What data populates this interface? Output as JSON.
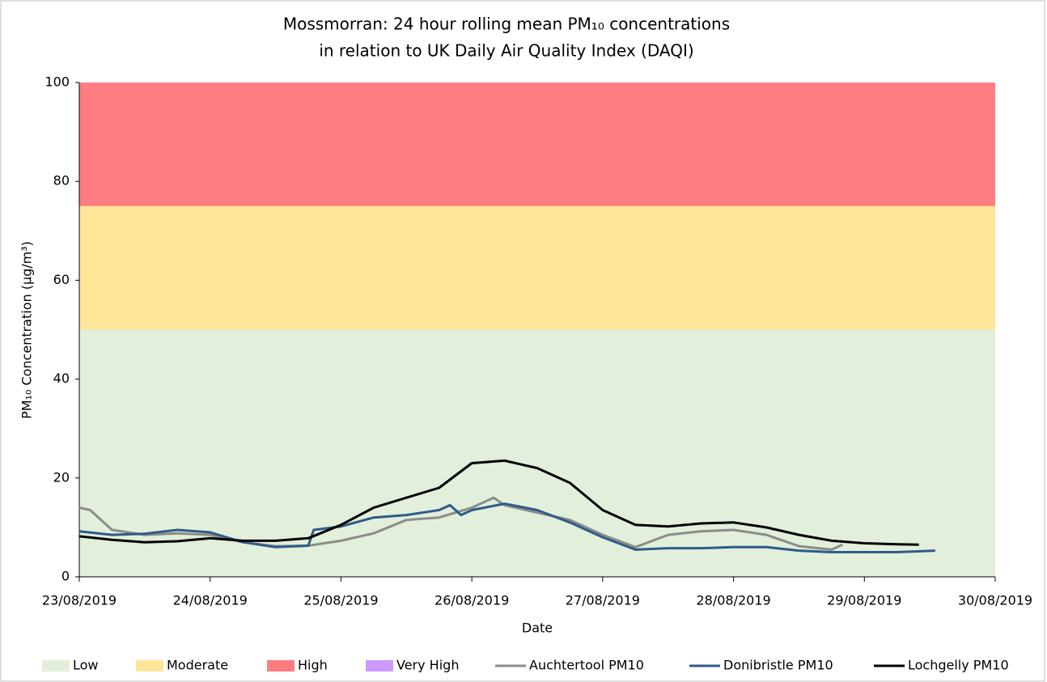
{
  "chart_data": {
    "type": "line",
    "title": [
      "Mossmorran: 24 hour rolling mean PM₁₀ concentrations",
      "in relation to UK Daily Air Quality Index (DAQI)"
    ],
    "x_label": "Date",
    "y_label": "PM₁₀ Concentration (µg/m³)",
    "xlim": [
      "2019-08-23T00:00",
      "2019-08-30T00:00"
    ],
    "xticks": [
      {
        "value": "2019-08-23T00:00",
        "label": "23/08/2019"
      },
      {
        "value": "2019-08-24T00:00",
        "label": "24/08/2019"
      },
      {
        "value": "2019-08-25T00:00",
        "label": "25/08/2019"
      },
      {
        "value": "2019-08-26T00:00",
        "label": "26/08/2019"
      },
      {
        "value": "2019-08-27T00:00",
        "label": "27/08/2019"
      },
      {
        "value": "2019-08-28T00:00",
        "label": "28/08/2019"
      },
      {
        "value": "2019-08-29T00:00",
        "label": "29/08/2019"
      },
      {
        "value": "2019-08-30T00:00",
        "label": "30/08/2019"
      }
    ],
    "ylim": [
      0,
      100
    ],
    "yticks": [
      0,
      20,
      40,
      60,
      80,
      100
    ],
    "bands": [
      {
        "name": "Low",
        "from": 0,
        "to": 50,
        "color": "#e2efda"
      },
      {
        "name": "Moderate",
        "from": 50,
        "to": 75,
        "color": "#ffe699"
      },
      {
        "name": "High",
        "from": 75,
        "to": 100,
        "color": "#ff7c80"
      },
      {
        "name": "Very High",
        "from": 100,
        "color": "#cc99ff"
      }
    ],
    "series": [
      {
        "name": "Auchtertool PM10",
        "color": "#8c8c8c",
        "x": [
          "2019-08-23T00:00",
          "2019-08-23T02:00",
          "2019-08-23T06:00",
          "2019-08-23T12:00",
          "2019-08-23T18:00",
          "2019-08-24T00:00",
          "2019-08-24T06:00",
          "2019-08-24T12:00",
          "2019-08-24T18:00",
          "2019-08-25T00:00",
          "2019-08-25T06:00",
          "2019-08-25T12:00",
          "2019-08-25T18:00",
          "2019-08-26T00:00",
          "2019-08-26T04:00",
          "2019-08-26T06:00",
          "2019-08-26T12:00",
          "2019-08-26T18:00",
          "2019-08-27T00:00",
          "2019-08-27T06:00",
          "2019-08-27T12:00",
          "2019-08-27T18:00",
          "2019-08-28T00:00",
          "2019-08-28T06:00",
          "2019-08-28T12:00",
          "2019-08-28T18:00",
          "2019-08-28T20:00"
        ],
        "values": [
          14,
          13.5,
          9.5,
          8.5,
          8.8,
          8.5,
          7,
          6.2,
          6.3,
          7.3,
          8.8,
          11.5,
          12,
          14,
          16,
          14.5,
          13,
          11.5,
          8.5,
          6,
          8.5,
          9.2,
          9.5,
          8.5,
          6.2,
          5.5,
          6.5
        ]
      },
      {
        "name": "Donibristle PM10",
        "color": "#2e5c8a",
        "x": [
          "2019-08-23T00:00",
          "2019-08-23T06:00",
          "2019-08-23T12:00",
          "2019-08-23T18:00",
          "2019-08-24T00:00",
          "2019-08-24T06:00",
          "2019-08-24T12:00",
          "2019-08-24T18:00",
          "2019-08-24T19:00",
          "2019-08-25T00:00",
          "2019-08-25T06:00",
          "2019-08-25T12:00",
          "2019-08-25T18:00",
          "2019-08-25T20:00",
          "2019-08-25T22:00",
          "2019-08-26T00:00",
          "2019-08-26T06:00",
          "2019-08-26T12:00",
          "2019-08-26T18:00",
          "2019-08-27T00:00",
          "2019-08-27T06:00",
          "2019-08-27T12:00",
          "2019-08-27T18:00",
          "2019-08-28T00:00",
          "2019-08-28T06:00",
          "2019-08-28T12:00",
          "2019-08-28T18:00",
          "2019-08-29T00:00",
          "2019-08-29T06:00",
          "2019-08-29T13:00"
        ],
        "values": [
          9.2,
          8.5,
          8.7,
          9.5,
          9,
          7,
          6,
          6.3,
          9.5,
          10.2,
          12,
          12.5,
          13.5,
          14.5,
          12.5,
          13.5,
          14.8,
          13.5,
          11,
          8,
          5.5,
          5.8,
          5.8,
          6,
          6,
          5.3,
          5,
          5,
          5,
          5.3
        ]
      },
      {
        "name": "Lochgelly PM10",
        "color": "#000000",
        "x": [
          "2019-08-23T00:00",
          "2019-08-23T06:00",
          "2019-08-23T12:00",
          "2019-08-23T18:00",
          "2019-08-24T00:00",
          "2019-08-24T06:00",
          "2019-08-24T12:00",
          "2019-08-24T18:00",
          "2019-08-25T00:00",
          "2019-08-25T06:00",
          "2019-08-25T12:00",
          "2019-08-25T18:00",
          "2019-08-26T00:00",
          "2019-08-26T06:00",
          "2019-08-26T12:00",
          "2019-08-26T18:00",
          "2019-08-27T00:00",
          "2019-08-27T06:00",
          "2019-08-27T12:00",
          "2019-08-27T18:00",
          "2019-08-28T00:00",
          "2019-08-28T06:00",
          "2019-08-28T12:00",
          "2019-08-28T18:00",
          "2019-08-29T00:00",
          "2019-08-29T06:00",
          "2019-08-29T10:00"
        ],
        "values": [
          8.2,
          7.5,
          7,
          7.2,
          7.8,
          7.3,
          7.3,
          7.8,
          10.5,
          14,
          16,
          18,
          23,
          23.5,
          22,
          19,
          13.5,
          10.5,
          10.2,
          10.8,
          11,
          10,
          8.5,
          7.3,
          6.8,
          6.6,
          6.5
        ]
      }
    ]
  }
}
